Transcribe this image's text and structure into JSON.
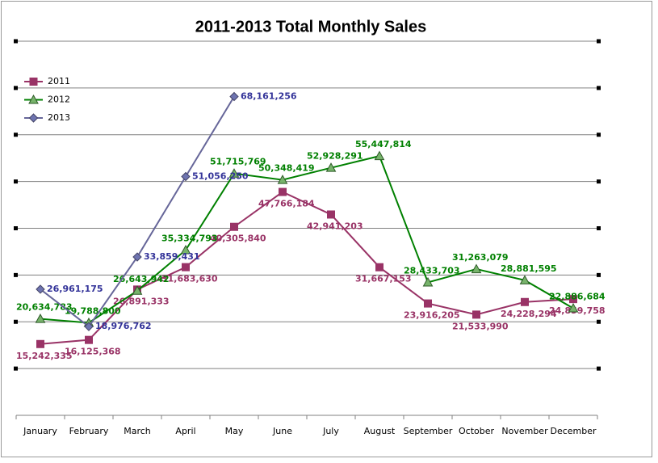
{
  "chart_data": {
    "type": "line",
    "title": "2011-2013  Total Monthly Sales",
    "categories": [
      "January",
      "February",
      "March",
      "April",
      "May",
      "June",
      "July",
      "August",
      "September",
      "October",
      "November",
      "December"
    ],
    "series": [
      {
        "name": "2011",
        "color": "#993366",
        "marker": "square",
        "values": [
          15242335,
          16125368,
          26891333,
          31683630,
          40305840,
          47766184,
          42941203,
          31667153,
          23916205,
          21533990,
          24228294,
          24859758
        ],
        "value_labels": [
          "15,242,335",
          "16,125,368",
          "26,891,333",
          "31,683,630",
          "40,305,840",
          "47,766,184",
          "42,941,203",
          "31,667,153",
          "23,916,205",
          "21,533,990",
          "24,228,294",
          "24,859,758"
        ]
      },
      {
        "name": "2012",
        "color": "#008000",
        "marker": "triangle",
        "values": [
          20634783,
          19788800,
          26643942,
          35334793,
          51715769,
          50348419,
          52928291,
          55447814,
          28433703,
          31263079,
          28881595,
          22886684
        ],
        "value_labels": [
          "20,634,783",
          "19,788,800",
          "26,643,942",
          "35,334,793",
          "51,715,769",
          "50,348,419",
          "52,928,291",
          "55,447,814",
          "28,433,703",
          "31,263,079",
          "28,881,595",
          "22,886,684"
        ]
      },
      {
        "name": "2013",
        "color": "#666699",
        "marker": "diamond",
        "values": [
          26961175,
          18976762,
          33859431,
          51056250,
          68161256,
          null,
          null,
          null,
          null,
          null,
          null,
          null
        ],
        "value_labels": [
          "26,961,175",
          "18,976,762",
          "33,859,431",
          "51,056,250",
          "68,161,256",
          null,
          null,
          null,
          null,
          null,
          null,
          null
        ]
      }
    ],
    "ylim": [
      0,
      80000000
    ],
    "yticks": [
      0,
      10000000,
      20000000,
      30000000,
      40000000,
      50000000,
      60000000,
      70000000,
      80000000
    ],
    "grid": true,
    "legend": "top-left"
  }
}
